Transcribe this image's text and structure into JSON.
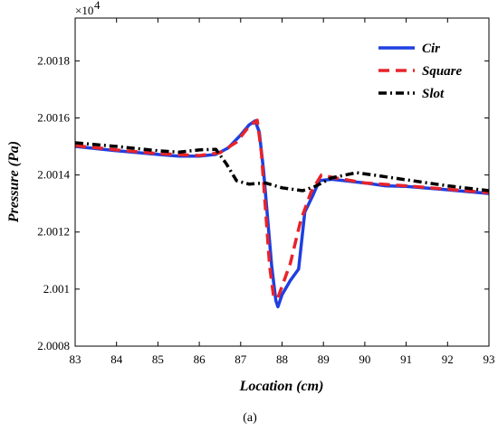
{
  "chart_data": {
    "type": "line",
    "xlabel": "Location (cm)",
    "ylabel": "Pressure (Pa)",
    "exponent_label": "×10",
    "exponent_power": "4",
    "xlim": [
      83,
      93
    ],
    "ylim": [
      2.0008,
      2.00195
    ],
    "x_ticks": [
      "83",
      "84",
      "85",
      "86",
      "87",
      "88",
      "89",
      "90",
      "91",
      "92",
      "93"
    ],
    "y_ticks": [
      {
        "value": 2.0008,
        "label": "2.0008"
      },
      {
        "value": 2.001,
        "label": "2.001"
      },
      {
        "value": 2.0012,
        "label": "2.0012"
      },
      {
        "value": 2.0014,
        "label": "2.0014"
      },
      {
        "value": 2.0016,
        "label": "2.0016"
      },
      {
        "value": 2.0018,
        "label": "2.0018"
      }
    ],
    "legend_position": "top-right",
    "grid": false,
    "caption": "(a)",
    "series": [
      {
        "name": "Cir",
        "color": "#1f3fe0",
        "style": "solid",
        "points": [
          [
            83.0,
            2.0015
          ],
          [
            84.0,
            2.001485
          ],
          [
            85.0,
            2.001472
          ],
          [
            85.5,
            2.001466
          ],
          [
            86.0,
            2.001466
          ],
          [
            86.4,
            2.001472
          ],
          [
            86.7,
            2.001495
          ],
          [
            87.0,
            2.00154
          ],
          [
            87.2,
            2.001575
          ],
          [
            87.35,
            2.00159
          ],
          [
            87.45,
            2.00155
          ],
          [
            87.55,
            2.00142
          ],
          [
            87.65,
            2.00125
          ],
          [
            87.75,
            2.00108
          ],
          [
            87.85,
            2.00096
          ],
          [
            87.9,
            2.000938
          ],
          [
            88.0,
            2.00098
          ],
          [
            88.2,
            2.00103
          ],
          [
            88.4,
            2.00107
          ],
          [
            88.55,
            2.00127
          ],
          [
            88.75,
            2.00133
          ],
          [
            88.9,
            2.00138
          ],
          [
            89.2,
            2.001385
          ],
          [
            90.0,
            2.001372
          ],
          [
            90.5,
            2.001362
          ],
          [
            91.0,
            2.00136
          ],
          [
            92.0,
            2.001348
          ],
          [
            93.0,
            2.001335
          ]
        ]
      },
      {
        "name": "Square",
        "color": "#e8232a",
        "style": "dashed",
        "points": [
          [
            83.0,
            2.001503
          ],
          [
            84.0,
            2.001488
          ],
          [
            85.0,
            2.001475
          ],
          [
            86.0,
            2.001468
          ],
          [
            86.5,
            2.001478
          ],
          [
            86.9,
            2.001515
          ],
          [
            87.2,
            2.00157
          ],
          [
            87.4,
            2.001592
          ],
          [
            87.5,
            2.00148
          ],
          [
            87.6,
            2.00128
          ],
          [
            87.7,
            2.00108
          ],
          [
            87.8,
            2.00097
          ],
          [
            87.9,
            2.00097
          ],
          [
            88.0,
            2.00101
          ],
          [
            88.2,
            2.00109
          ],
          [
            88.45,
            2.00124
          ],
          [
            88.7,
            2.00134
          ],
          [
            88.95,
            2.0014
          ],
          [
            89.2,
            2.001392
          ],
          [
            90.0,
            2.001372
          ],
          [
            91.0,
            2.001362
          ],
          [
            92.0,
            2.00135
          ],
          [
            93.0,
            2.001338
          ]
        ]
      },
      {
        "name": "Slot",
        "color": "#000000",
        "style": "dashdot",
        "points": [
          [
            83.0,
            2.001513
          ],
          [
            84.0,
            2.0015
          ],
          [
            85.0,
            2.001485
          ],
          [
            85.5,
            2.00148
          ],
          [
            86.0,
            2.001488
          ],
          [
            86.4,
            2.00149
          ],
          [
            86.65,
            2.00144
          ],
          [
            86.9,
            2.00138
          ],
          [
            87.2,
            2.001368
          ],
          [
            87.6,
            2.001372
          ],
          [
            88.0,
            2.001355
          ],
          [
            88.5,
            2.001345
          ],
          [
            88.8,
            2.00136
          ],
          [
            89.2,
            2.00139
          ],
          [
            89.8,
            2.001408
          ],
          [
            90.3,
            2.001398
          ],
          [
            91.0,
            2.001383
          ],
          [
            92.0,
            2.001362
          ],
          [
            93.0,
            2.001345
          ]
        ]
      }
    ]
  }
}
